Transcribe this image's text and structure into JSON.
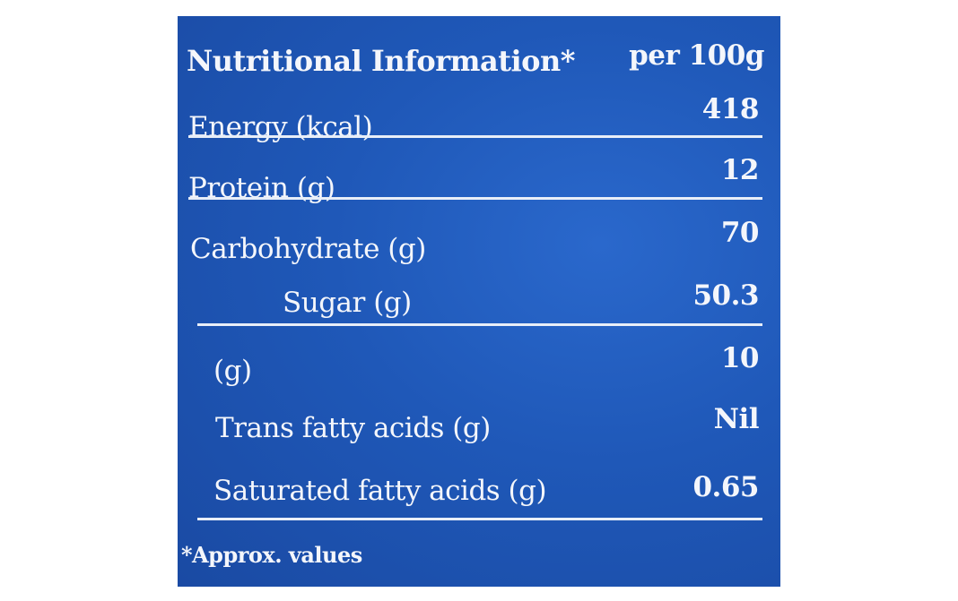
{
  "header": {
    "title": "Nutritional Information*",
    "unit": "per 100g"
  },
  "rows": [
    [
      "Energy (kcal)",
      "418"
    ],
    [
      "Protein (g)",
      "12"
    ],
    [
      "Carbohydrate (g)",
      "70"
    ],
    [
      "Sugar (g)",
      "50.3"
    ],
    [
      "(g)",
      "10"
    ],
    [
      "Trans fatty acids (g)",
      "Nil"
    ],
    [
      "Saturated fatty acids (g)",
      "0.65"
    ]
  ],
  "footnote": "*Approx. values"
}
